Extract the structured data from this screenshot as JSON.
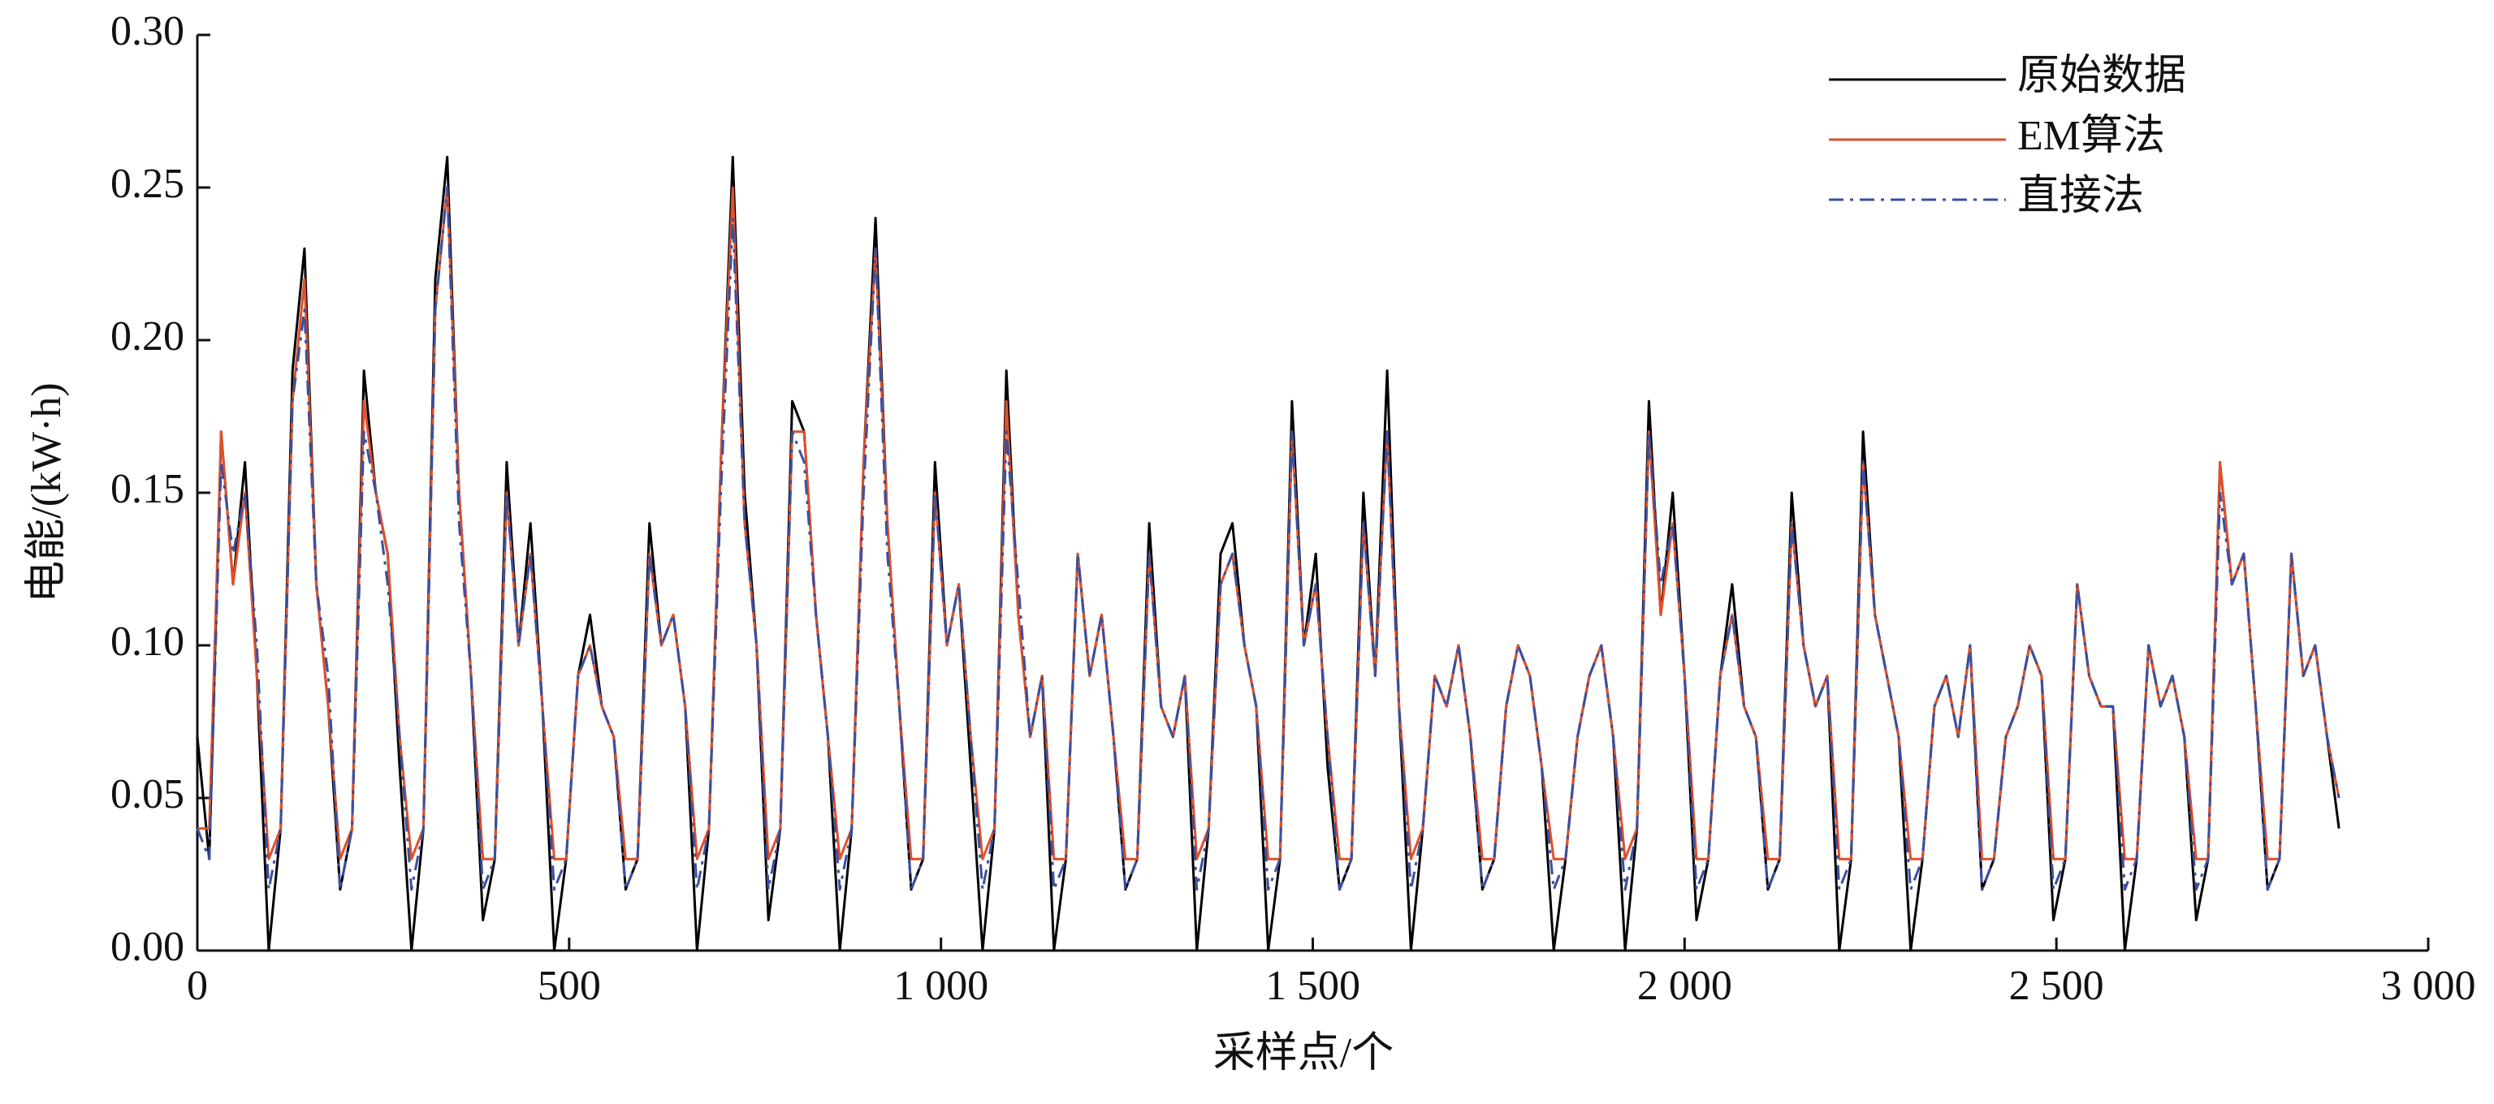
{
  "chart_data": {
    "type": "line",
    "xlabel": "采样点/个",
    "ylabel": "电能/(kW·h)",
    "x": [
      0,
      16,
      32,
      48,
      64,
      80,
      96,
      112,
      128,
      144,
      160,
      176,
      192,
      208,
      224,
      240,
      256,
      272,
      288,
      304,
      320,
      336,
      352,
      368,
      384,
      400,
      416,
      432,
      448,
      464,
      480,
      496,
      512,
      528,
      544,
      560,
      576,
      592,
      608,
      624,
      640,
      656,
      672,
      688,
      704,
      720,
      736,
      752,
      768,
      784,
      800,
      816,
      832,
      848,
      864,
      880,
      896,
      912,
      928,
      944,
      960,
      976,
      992,
      1008,
      1024,
      1040,
      1056,
      1072,
      1088,
      1104,
      1120,
      1136,
      1152,
      1168,
      1184,
      1200,
      1216,
      1232,
      1248,
      1264,
      1280,
      1296,
      1312,
      1328,
      1344,
      1360,
      1376,
      1392,
      1408,
      1424,
      1440,
      1456,
      1472,
      1488,
      1504,
      1520,
      1536,
      1552,
      1568,
      1584,
      1600,
      1616,
      1632,
      1648,
      1664,
      1680,
      1696,
      1712,
      1728,
      1744,
      1760,
      1776,
      1792,
      1808,
      1824,
      1840,
      1856,
      1872,
      1888,
      1904,
      1920,
      1936,
      1952,
      1968,
      1984,
      2000,
      2016,
      2032,
      2048,
      2064,
      2080,
      2096,
      2112,
      2128,
      2144,
      2160,
      2176,
      2192,
      2208,
      2224,
      2240,
      2256,
      2272,
      2288,
      2304,
      2320,
      2336,
      2352,
      2368,
      2384,
      2400,
      2416,
      2432,
      2448,
      2464,
      2480,
      2496,
      2512,
      2528,
      2544,
      2560,
      2576,
      2592,
      2608,
      2624,
      2640,
      2656,
      2672,
      2688,
      2704,
      2720,
      2736,
      2752,
      2768,
      2784,
      2800,
      2816,
      2832,
      2848,
      2864,
      2880
    ],
    "series": [
      {
        "name": "原始数据",
        "color": "#000000",
        "dash": "solid",
        "values": [
          0.07,
          0.03,
          0.17,
          0.12,
          0.16,
          0.09,
          0.0,
          0.04,
          0.19,
          0.23,
          0.12,
          0.08,
          0.02,
          0.04,
          0.19,
          0.15,
          0.13,
          0.06,
          0.0,
          0.04,
          0.22,
          0.26,
          0.15,
          0.09,
          0.01,
          0.03,
          0.16,
          0.1,
          0.14,
          0.08,
          0.0,
          0.03,
          0.09,
          0.11,
          0.08,
          0.07,
          0.02,
          0.03,
          0.14,
          0.1,
          0.11,
          0.08,
          0.0,
          0.04,
          0.16,
          0.26,
          0.15,
          0.1,
          0.01,
          0.04,
          0.18,
          0.17,
          0.11,
          0.07,
          0.0,
          0.04,
          0.16,
          0.24,
          0.14,
          0.08,
          0.02,
          0.03,
          0.16,
          0.1,
          0.12,
          0.06,
          0.0,
          0.04,
          0.19,
          0.11,
          0.07,
          0.09,
          0.0,
          0.03,
          0.13,
          0.09,
          0.11,
          0.07,
          0.02,
          0.03,
          0.14,
          0.08,
          0.07,
          0.09,
          0.0,
          0.04,
          0.13,
          0.14,
          0.1,
          0.08,
          0.0,
          0.03,
          0.18,
          0.1,
          0.13,
          0.06,
          0.02,
          0.03,
          0.15,
          0.09,
          0.19,
          0.08,
          0.0,
          0.04,
          0.09,
          0.08,
          0.1,
          0.07,
          0.02,
          0.03,
          0.08,
          0.1,
          0.09,
          0.06,
          0.0,
          0.03,
          0.07,
          0.09,
          0.1,
          0.07,
          0.0,
          0.04,
          0.18,
          0.11,
          0.15,
          0.09,
          0.01,
          0.03,
          0.09,
          0.12,
          0.08,
          0.07,
          0.02,
          0.03,
          0.15,
          0.1,
          0.08,
          0.09,
          0.0,
          0.03,
          0.17,
          0.11,
          0.09,
          0.07,
          0.0,
          0.03,
          0.08,
          0.09,
          0.07,
          0.1,
          0.02,
          0.03,
          0.07,
          0.08,
          0.1,
          0.09,
          0.01,
          0.03,
          0.12,
          0.09,
          0.08,
          0.08,
          0.0,
          0.03,
          0.1,
          0.08,
          0.09,
          0.07,
          0.01,
          0.03,
          0.16,
          0.12,
          0.13,
          0.08,
          0.02,
          0.03,
          0.13,
          0.09,
          0.1,
          0.07,
          0.04
        ]
      },
      {
        "name": "EM算法",
        "color": "#e0502a",
        "dash": "solid",
        "values": [
          0.04,
          0.04,
          0.17,
          0.12,
          0.15,
          0.09,
          0.03,
          0.04,
          0.18,
          0.22,
          0.12,
          0.08,
          0.03,
          0.04,
          0.18,
          0.15,
          0.13,
          0.07,
          0.03,
          0.04,
          0.21,
          0.25,
          0.15,
          0.09,
          0.03,
          0.03,
          0.15,
          0.1,
          0.13,
          0.08,
          0.03,
          0.03,
          0.09,
          0.1,
          0.08,
          0.07,
          0.03,
          0.03,
          0.13,
          0.1,
          0.11,
          0.08,
          0.03,
          0.04,
          0.16,
          0.25,
          0.14,
          0.1,
          0.03,
          0.04,
          0.17,
          0.17,
          0.11,
          0.07,
          0.03,
          0.04,
          0.16,
          0.23,
          0.14,
          0.08,
          0.03,
          0.03,
          0.15,
          0.1,
          0.12,
          0.07,
          0.03,
          0.04,
          0.18,
          0.11,
          0.07,
          0.09,
          0.03,
          0.03,
          0.13,
          0.09,
          0.11,
          0.07,
          0.03,
          0.03,
          0.13,
          0.08,
          0.07,
          0.09,
          0.03,
          0.04,
          0.12,
          0.13,
          0.1,
          0.08,
          0.03,
          0.03,
          0.17,
          0.1,
          0.12,
          0.07,
          0.03,
          0.03,
          0.14,
          0.09,
          0.17,
          0.08,
          0.03,
          0.04,
          0.09,
          0.08,
          0.1,
          0.07,
          0.03,
          0.03,
          0.08,
          0.1,
          0.09,
          0.06,
          0.03,
          0.03,
          0.07,
          0.09,
          0.1,
          0.07,
          0.03,
          0.04,
          0.17,
          0.11,
          0.14,
          0.09,
          0.03,
          0.03,
          0.09,
          0.11,
          0.08,
          0.07,
          0.03,
          0.03,
          0.14,
          0.1,
          0.08,
          0.09,
          0.03,
          0.03,
          0.16,
          0.11,
          0.09,
          0.07,
          0.03,
          0.03,
          0.08,
          0.09,
          0.07,
          0.1,
          0.03,
          0.03,
          0.07,
          0.08,
          0.1,
          0.09,
          0.03,
          0.03,
          0.12,
          0.09,
          0.08,
          0.08,
          0.03,
          0.03,
          0.1,
          0.08,
          0.09,
          0.07,
          0.03,
          0.03,
          0.16,
          0.12,
          0.13,
          0.08,
          0.03,
          0.03,
          0.13,
          0.09,
          0.1,
          0.07,
          0.05
        ]
      },
      {
        "name": "直接法",
        "color": "#3a4fa0",
        "dash": "dashdot",
        "values": [
          0.04,
          0.03,
          0.16,
          0.13,
          0.15,
          0.1,
          0.02,
          0.04,
          0.18,
          0.21,
          0.12,
          0.09,
          0.02,
          0.04,
          0.17,
          0.15,
          0.12,
          0.07,
          0.02,
          0.04,
          0.21,
          0.25,
          0.14,
          0.09,
          0.02,
          0.03,
          0.15,
          0.1,
          0.13,
          0.08,
          0.02,
          0.03,
          0.09,
          0.1,
          0.08,
          0.07,
          0.02,
          0.03,
          0.13,
          0.1,
          0.11,
          0.08,
          0.02,
          0.04,
          0.15,
          0.24,
          0.14,
          0.1,
          0.02,
          0.04,
          0.17,
          0.16,
          0.11,
          0.07,
          0.02,
          0.04,
          0.15,
          0.23,
          0.13,
          0.08,
          0.02,
          0.03,
          0.15,
          0.1,
          0.12,
          0.07,
          0.02,
          0.04,
          0.17,
          0.12,
          0.07,
          0.09,
          0.02,
          0.03,
          0.13,
          0.09,
          0.11,
          0.07,
          0.02,
          0.03,
          0.13,
          0.08,
          0.07,
          0.09,
          0.02,
          0.04,
          0.12,
          0.13,
          0.1,
          0.08,
          0.02,
          0.03,
          0.17,
          0.1,
          0.12,
          0.07,
          0.02,
          0.03,
          0.14,
          0.09,
          0.17,
          0.08,
          0.02,
          0.04,
          0.09,
          0.08,
          0.1,
          0.07,
          0.02,
          0.03,
          0.08,
          0.1,
          0.09,
          0.06,
          0.02,
          0.03,
          0.07,
          0.09,
          0.1,
          0.07,
          0.02,
          0.04,
          0.17,
          0.12,
          0.14,
          0.09,
          0.02,
          0.03,
          0.09,
          0.11,
          0.08,
          0.07,
          0.02,
          0.03,
          0.14,
          0.1,
          0.08,
          0.09,
          0.02,
          0.03,
          0.16,
          0.11,
          0.09,
          0.07,
          0.02,
          0.03,
          0.08,
          0.09,
          0.07,
          0.1,
          0.02,
          0.03,
          0.07,
          0.08,
          0.1,
          0.09,
          0.02,
          0.03,
          0.12,
          0.09,
          0.08,
          0.08,
          0.02,
          0.03,
          0.1,
          0.08,
          0.09,
          0.07,
          0.02,
          0.03,
          0.15,
          0.12,
          0.13,
          0.08,
          0.02,
          0.03,
          0.13,
          0.09,
          0.1,
          0.07,
          0.05
        ]
      }
    ],
    "xlim": [
      0,
      3000
    ],
    "xticks": [
      0,
      {
        "value": 500,
        "label": "500"
      },
      {
        "value": 1000,
        "label": "1 000"
      },
      {
        "value": 1500,
        "label": "1 500"
      },
      {
        "value": 2000,
        "label": "2 000"
      },
      {
        "value": 2500,
        "label": "2 500"
      },
      {
        "value": 3000,
        "label": "3 000"
      }
    ],
    "ylim": [
      0,
      0.3
    ],
    "yticks": [
      {
        "value": 0,
        "label": "0.00"
      },
      {
        "value": 0.05,
        "label": "0.05"
      },
      {
        "value": 0.1,
        "label": "0.10"
      },
      {
        "value": 0.15,
        "label": "0.15"
      },
      {
        "value": 0.2,
        "label": "0.20"
      },
      {
        "value": 0.25,
        "label": "0.25"
      },
      {
        "value": 0.3,
        "label": "0.30"
      }
    ],
    "grid": false,
    "legend": "upper right"
  }
}
